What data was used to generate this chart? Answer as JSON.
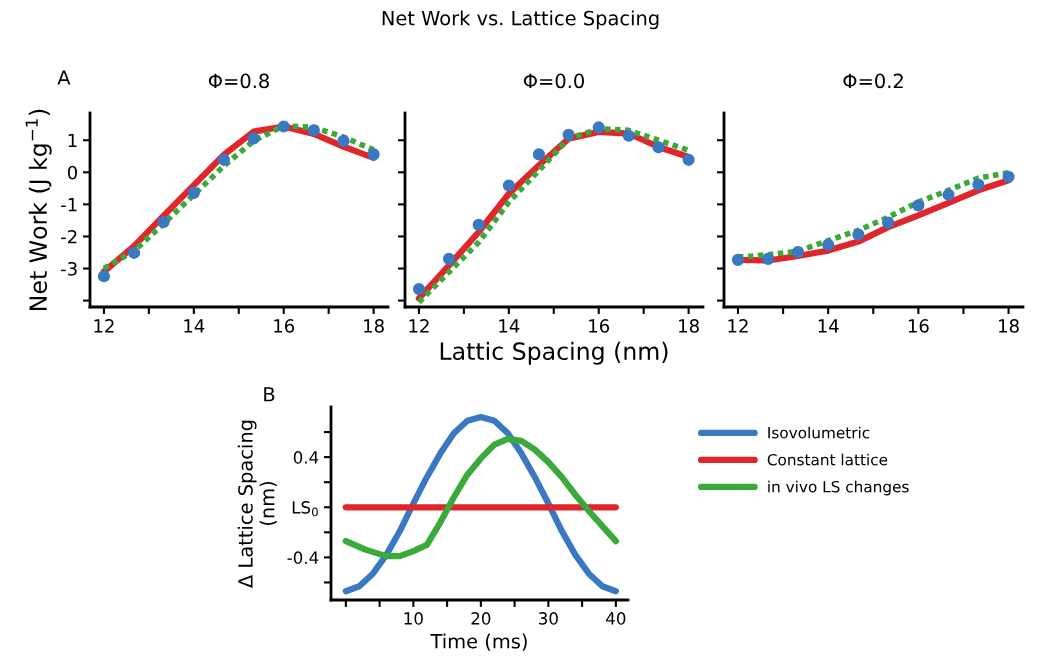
{
  "chart_data": [
    {
      "type": "line",
      "title": "Φ=0.8",
      "ylabel": "Net Work (J kg$^{−1}$)",
      "annotations": [
        "Net Work vs. Lattice Spacing",
        "A"
      ],
      "x": [
        12,
        12.67,
        13.33,
        14,
        14.67,
        15.33,
        16,
        16.67,
        17.33,
        18
      ],
      "series": [
        {
          "type": "line",
          "color": "#e0262a",
          "line_style": "solid",
          "values": [
            -3.1,
            -2.3,
            -1.35,
            -0.4,
            0.55,
            1.27,
            1.43,
            1.2,
            0.8,
            0.45
          ]
        },
        {
          "type": "line",
          "color": "#3aaa3a",
          "line_style": "dotted",
          "values": [
            -3.0,
            -2.45,
            -1.6,
            -0.7,
            0.2,
            0.98,
            1.45,
            1.4,
            1.1,
            0.7
          ]
        },
        {
          "type": "scatter",
          "color": "#3a78c2",
          "marker": "circle",
          "values": [
            -3.24,
            -2.51,
            -1.55,
            -0.64,
            0.39,
            1.06,
            1.43,
            1.31,
            0.98,
            0.56
          ]
        }
      ],
      "xlim": [
        11.69,
        18.32
      ],
      "xticks": [
        12,
        {
          "value": 13,
          "label": null
        },
        14,
        {
          "value": 15,
          "label": null
        },
        16,
        {
          "value": 17,
          "label": null
        },
        18
      ],
      "ylim": [
        -4.2,
        1.85
      ],
      "yticks": [
        {
          "value": -4,
          "label": null
        },
        {
          "value": -3,
          "label": "-3"
        },
        {
          "value": -2,
          "label": "-2"
        },
        {
          "value": -1,
          "label": "-1"
        },
        0,
        1
      ],
      "grid": false,
      "legend": false
    },
    {
      "type": "line",
      "title": "Φ=0.0",
      "xlabel": "Lattic Spacing (nm)",
      "x": [
        12,
        12.67,
        13.33,
        14,
        14.67,
        15.33,
        16,
        16.67,
        17.33,
        18
      ],
      "series": [
        {
          "type": "line",
          "color": "#e0262a",
          "line_style": "solid",
          "values": [
            -3.93,
            -2.9,
            -1.86,
            -0.67,
            0.22,
            1.05,
            1.26,
            1.21,
            0.79,
            0.48
          ]
        },
        {
          "type": "line",
          "color": "#3aaa3a",
          "line_style": "dotted",
          "values": [
            -4.05,
            -3.11,
            -2.18,
            -0.93,
            0.06,
            1.05,
            1.36,
            1.31,
            1.0,
            0.69
          ]
        },
        {
          "type": "scatter",
          "color": "#3a78c2",
          "marker": "circle",
          "values": [
            -3.64,
            -2.7,
            -1.64,
            -0.41,
            0.56,
            1.17,
            1.4,
            1.14,
            0.78,
            0.39
          ]
        }
      ],
      "xlim": [
        11.69,
        18.32
      ],
      "xticks": [
        12,
        {
          "value": 13,
          "label": null
        },
        14,
        {
          "value": 15,
          "label": null
        },
        16,
        {
          "value": 17,
          "label": null
        },
        18
      ],
      "ylim": [
        -4.2,
        1.85
      ],
      "yticks": [
        -4,
        -3,
        -2,
        -1,
        0,
        1
      ],
      "tick_labels": "x",
      "grid": false,
      "legend": false
    },
    {
      "type": "line",
      "title": "Φ=0.2",
      "x": [
        12,
        12.67,
        13.33,
        14,
        14.67,
        15.33,
        16,
        16.67,
        17.33,
        18
      ],
      "series": [
        {
          "type": "line",
          "color": "#e0262a",
          "line_style": "solid",
          "values": [
            -2.73,
            -2.75,
            -2.61,
            -2.44,
            -2.16,
            -1.71,
            -1.34,
            -0.95,
            -0.56,
            -0.25
          ]
        },
        {
          "type": "line",
          "color": "#3aaa3a",
          "line_style": "dotted",
          "values": [
            -2.65,
            -2.57,
            -2.46,
            -2.13,
            -1.81,
            -1.4,
            -0.93,
            -0.56,
            -0.18,
            -0.01
          ]
        },
        {
          "type": "scatter",
          "color": "#3a78c2",
          "marker": "circle",
          "values": [
            -2.73,
            -2.7,
            -2.49,
            -2.26,
            -1.94,
            -1.57,
            -1.03,
            -0.7,
            -0.38,
            -0.14
          ]
        }
      ],
      "xlim": [
        11.69,
        18.32
      ],
      "xticks": [
        12,
        {
          "value": 13,
          "label": null
        },
        14,
        {
          "value": 15,
          "label": null
        },
        16,
        {
          "value": 17,
          "label": null
        },
        18
      ],
      "ylim": [
        -4.2,
        1.85
      ],
      "yticks": [
        -4,
        -3,
        -2,
        -1,
        0,
        1
      ],
      "tick_labels": "x",
      "grid": false,
      "legend": false
    },
    {
      "type": "line",
      "xlabel": "Time (ms)",
      "ylabel": "Δ Lattice Spacing\n(nm)",
      "annotations": [
        "B"
      ],
      "series": [
        {
          "name": "Isovolumetric",
          "color": "#3a78c2",
          "x": [
            0,
            2,
            4,
            6,
            8,
            10,
            12,
            14,
            16,
            18,
            20,
            22,
            24,
            26,
            28,
            30,
            32,
            34,
            36,
            38,
            40
          ],
          "values": [
            -0.67,
            -0.63,
            -0.53,
            -0.38,
            -0.19,
            0.03,
            0.24,
            0.43,
            0.59,
            0.69,
            0.72,
            0.69,
            0.59,
            0.43,
            0.24,
            0.03,
            -0.19,
            -0.38,
            -0.53,
            -0.63,
            -0.67
          ]
        },
        {
          "name": "Constant lattice",
          "color": "#e0262a",
          "x": [
            0,
            40
          ],
          "values": [
            0,
            0
          ]
        },
        {
          "name": "in vivo LS changes",
          "color": "#3aaa3a",
          "x": [
            0,
            3,
            6,
            8,
            10,
            12,
            14,
            16,
            18,
            20,
            22,
            24,
            26,
            28,
            30,
            32,
            34,
            36,
            38,
            40
          ],
          "values": [
            -0.27,
            -0.34,
            -0.39,
            -0.39,
            -0.35,
            -0.3,
            -0.12,
            0.08,
            0.26,
            0.39,
            0.5,
            0.545,
            0.53,
            0.46,
            0.36,
            0.24,
            0.1,
            -0.03,
            -0.15,
            -0.27
          ]
        }
      ],
      "xlim": [
        -2.2,
        41.8
      ],
      "xticks": [
        {
          "value": 0,
          "label": null
        },
        {
          "value": 5,
          "label": null
        },
        10,
        {
          "value": 15,
          "label": null
        },
        20,
        {
          "value": 25,
          "label": null
        },
        30,
        {
          "value": 35,
          "label": null
        },
        40
      ],
      "ylim": [
        -0.74,
        0.8
      ],
      "yticks": [
        {
          "value": -0.6,
          "label": null
        },
        {
          "value": -0.4,
          "label": "-0.4"
        },
        {
          "value": -0.2,
          "label": null
        },
        {
          "value": 0,
          "label": "LS$_{0}$"
        },
        {
          "value": 0.2,
          "label": null
        },
        0.4,
        {
          "value": 0.6,
          "label": null
        }
      ],
      "grid": false,
      "legend": "right",
      "line_style": "solid"
    }
  ]
}
